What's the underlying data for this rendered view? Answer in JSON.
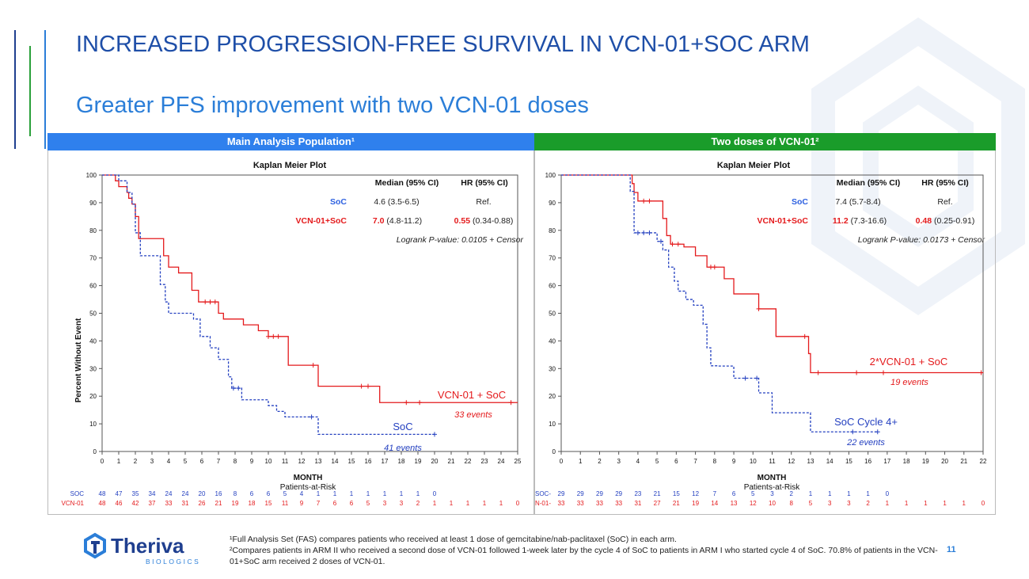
{
  "title": {
    "line1": "INCREASED PROGRESSION-FREE SURVIVAL IN VCN-01+SOC ARM",
    "line2": "Greater PFS improvement with two VCN-01 doses"
  },
  "colors": {
    "title": "#1f4fa8",
    "subtitle": "#2b7ed8",
    "panel_left": "#2f80ed",
    "panel_right": "#1a9c2a",
    "vcn": "#e41a1c",
    "soc": "#2440c0"
  },
  "footer": {
    "logo_name": "Theriva",
    "logo_sub": "BIOLOGICS",
    "footnote1": "¹Full Analysis Set (FAS) compares patients who received at least 1 dose of gemcitabine/nab-paclitaxel (SoC) in each arm.",
    "footnote2": "²Compares patients in ARM II who received a second dose of VCN-01 followed 1-week later by the cycle 4 of SoC to patients in ARM I who started cycle 4 of SoC. 70.8% of patients in the VCN-01+SoC arm received 2 doses of VCN-01.",
    "page_number": "11"
  },
  "chart_data": [
    {
      "type": "line",
      "panel_header": "Main Analysis Population¹",
      "title": "Kaplan Meier Plot",
      "xlabel": "MONTH",
      "ylabel": "Percent Without Event",
      "xlim": [
        0,
        25
      ],
      "ylim": [
        0,
        100
      ],
      "xticks": [
        0,
        1,
        2,
        3,
        4,
        5,
        6,
        7,
        8,
        9,
        10,
        11,
        12,
        13,
        14,
        15,
        16,
        17,
        18,
        19,
        20,
        21,
        22,
        23,
        24,
        25
      ],
      "yticks": [
        0,
        10,
        20,
        30,
        40,
        50,
        60,
        70,
        80,
        90,
        100
      ],
      "table": {
        "header_median": "Median (95% CI)",
        "header_hr": "HR (95% CI)",
        "soc_label": "SoC",
        "soc_median": "4.6 (3.5-6.5)",
        "soc_hr": "Ref.",
        "vcn_label": "VCN-01+SoC",
        "vcn_median_bold": "7.0",
        "vcn_median_rest": "(4.8-11.2)",
        "vcn_hr_bold": "0.55",
        "vcn_hr_rest": "(0.34-0.88)",
        "logrank": "Logrank P-value:  0.0105  + Censor"
      },
      "series": [
        {
          "name": "VCN-01 + SoC",
          "events": "33 events",
          "color": "#e41a1c",
          "dash": false,
          "x": [
            0,
            0.8,
            1.0,
            1.5,
            1.6,
            1.8,
            2.0,
            2.2,
            2.5,
            3.0,
            3.5,
            3.7,
            4.0,
            4.6,
            5.4,
            5.8,
            6.0,
            7.0,
            7.3,
            8.0,
            8.5,
            9.4,
            10.0,
            11.2,
            12.9,
            13.0,
            14.9,
            16.6,
            16.7,
            25
          ],
          "y": [
            100,
            97.9,
            95.8,
            93.7,
            91.6,
            89.5,
            85.0,
            77.0,
            77.0,
            77.0,
            77.0,
            70.8,
            66.7,
            64.6,
            58.3,
            54.1,
            54.1,
            50.0,
            47.9,
            47.9,
            45.8,
            43.7,
            41.6,
            31.2,
            31.2,
            23.6,
            23.6,
            23.6,
            17.7,
            17.7
          ],
          "censor_x": [
            6.2,
            6.5,
            6.8,
            10.0,
            10.3,
            10.6,
            12.7,
            15.6,
            16.0,
            18.3,
            19.1,
            24.6
          ],
          "end_label": "VCN-01 + SoC"
        },
        {
          "name": "SoC",
          "events": "41 events",
          "color": "#2440c0",
          "dash": true,
          "x": [
            0,
            1.0,
            1.5,
            1.8,
            2.0,
            2.3,
            2.7,
            3.5,
            3.8,
            4.0,
            4.2,
            5.5,
            5.9,
            6.5,
            7.0,
            7.2,
            7.6,
            7.8,
            8.0,
            8.4,
            8.7,
            9.0,
            10.0,
            10.5,
            11.0,
            12.9,
            13.0,
            20
          ],
          "y": [
            100,
            97.9,
            93.7,
            89.5,
            79.1,
            70.8,
            70.8,
            60.4,
            54.1,
            50.0,
            50.0,
            47.9,
            41.6,
            37.5,
            33.3,
            33.3,
            27.0,
            22.9,
            22.9,
            18.7,
            18.7,
            18.7,
            16.6,
            14.5,
            12.5,
            12.5,
            6.2,
            6.2
          ],
          "censor_x": [
            7.9,
            8.2,
            12.6,
            20.0
          ],
          "end_label": "SoC"
        }
      ],
      "risk_title": "Patients-at-Risk",
      "risk_rows": [
        {
          "label": "SOC",
          "values": [
            "48",
            "47",
            "35",
            "34",
            "24",
            "24",
            "20",
            "16",
            "8",
            "6",
            "6",
            "5",
            "4",
            "1",
            "1",
            "1",
            "1",
            "1",
            "1",
            "1",
            "0"
          ]
        },
        {
          "label": "VCN-01",
          "values": [
            "48",
            "46",
            "42",
            "37",
            "33",
            "31",
            "26",
            "21",
            "19",
            "18",
            "15",
            "11",
            "9",
            "7",
            "6",
            "6",
            "5",
            "3",
            "3",
            "2",
            "1",
            "1",
            "1",
            "1",
            "1",
            "0"
          ]
        }
      ]
    },
    {
      "type": "line",
      "panel_header": "Two doses of VCN-01²",
      "title": "Kaplan Meier Plot",
      "xlabel": "MONTH",
      "ylabel": "",
      "xlim": [
        0,
        22
      ],
      "ylim": [
        0,
        100
      ],
      "xticks": [
        0,
        1,
        2,
        3,
        4,
        5,
        6,
        7,
        8,
        9,
        10,
        11,
        12,
        13,
        14,
        15,
        16,
        17,
        18,
        19,
        20,
        21,
        22
      ],
      "yticks": [
        0,
        10,
        20,
        30,
        40,
        50,
        60,
        70,
        80,
        90,
        100
      ],
      "table": {
        "header_median": "Median (95% CI)",
        "header_hr": "HR (95% CI)",
        "soc_label": "SoC",
        "soc_median": "7.4 (5.7-8.4)",
        "soc_hr": "Ref.",
        "vcn_label": "VCN-01+SoC",
        "vcn_median_bold": "11.2",
        "vcn_median_rest": "(7.3-16.6)",
        "vcn_hr_bold": "0.48",
        "vcn_hr_rest": "(0.25-0.91)",
        "logrank": "Logrank P-value:  0.0173  + Censor"
      },
      "series": [
        {
          "name": "2*VCN-01 + SoC",
          "events": "19 events",
          "color": "#e41a1c",
          "dash": false,
          "x": [
            0,
            3.7,
            3.8,
            4.0,
            4.2,
            5.3,
            5.5,
            5.7,
            6.4,
            6.8,
            7.0,
            7.3,
            7.6,
            8.2,
            8.5,
            9.0,
            10.1,
            10.3,
            11.2,
            11.3,
            12.9,
            13.0,
            22
          ],
          "y": [
            100,
            96.9,
            93.7,
            90.6,
            90.6,
            84.3,
            78.1,
            75.0,
            74.0,
            74.0,
            70.8,
            70.8,
            66.7,
            66.7,
            62.5,
            57.0,
            57.0,
            51.6,
            41.6,
            41.6,
            35.4,
            28.5,
            28.5
          ],
          "censor_x": [
            4.3,
            4.6,
            5.8,
            6.1,
            7.8,
            8.0,
            10.3,
            12.7,
            13.4,
            15.4,
            16.8,
            21.9
          ],
          "end_label": "2*VCN-01 + SoC"
        },
        {
          "name": "SoC Cycle 4+",
          "events": "22 events",
          "color": "#2440c0",
          "dash": true,
          "x": [
            0,
            3.6,
            3.8,
            4.8,
            5.0,
            5.3,
            5.6,
            5.9,
            6.1,
            6.5,
            6.9,
            7.4,
            7.6,
            7.8,
            8.2,
            9.0,
            9.8,
            10.3,
            11.0,
            12.8,
            13.0,
            16.5
          ],
          "y": [
            100,
            94.1,
            79.1,
            79.1,
            76.0,
            72.9,
            66.7,
            61.6,
            58.0,
            55.0,
            52.9,
            46.0,
            37.5,
            31.0,
            30.9,
            26.5,
            26.5,
            21.2,
            14.0,
            14.0,
            7.1,
            7.1
          ],
          "censor_x": [
            4.0,
            4.3,
            4.6,
            5.2,
            9.6,
            10.2,
            15.2,
            16.5
          ],
          "end_label": "SoC Cycle 4+"
        }
      ],
      "risk_title": "Patients-at-Risk",
      "risk_rows": [
        {
          "label": "SOC-",
          "values": [
            "29",
            "29",
            "29",
            "29",
            "23",
            "21",
            "15",
            "12",
            "7",
            "6",
            "5",
            "3",
            "2",
            "1",
            "1",
            "1",
            "1",
            "0"
          ]
        },
        {
          "label": "N-01-",
          "values": [
            "33",
            "33",
            "33",
            "33",
            "31",
            "27",
            "21",
            "19",
            "14",
            "13",
            "12",
            "10",
            "8",
            "5",
            "3",
            "3",
            "2",
            "1",
            "1",
            "1",
            "1",
            "1",
            "0"
          ]
        }
      ]
    }
  ]
}
